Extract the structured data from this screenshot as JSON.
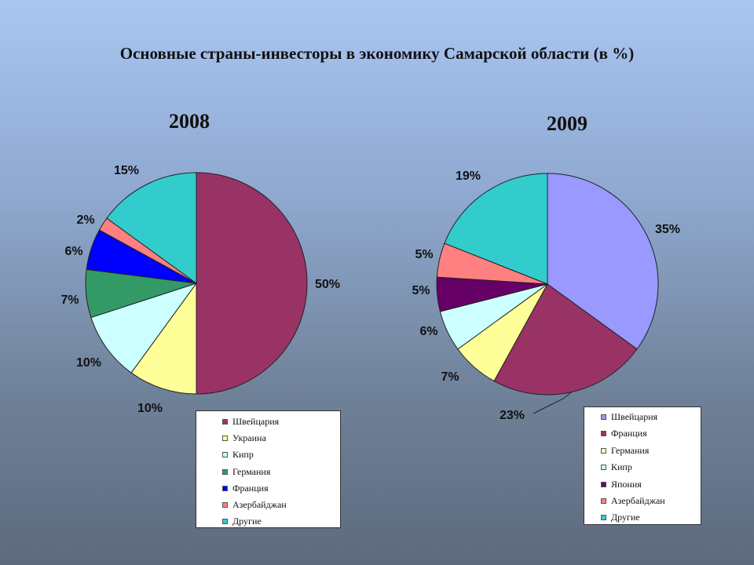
{
  "title": "Основные страны-инвесторы в экономику Самарской области (в %)",
  "chart_data": [
    {
      "type": "pie",
      "title": "2008",
      "legend_position": "below",
      "slices": [
        {
          "name": "Швейцария",
          "value": 50,
          "label": "50%",
          "color": "#993366"
        },
        {
          "name": "Украина",
          "value": 10,
          "label": "10%",
          "color": "#ffff99"
        },
        {
          "name": "Кипр",
          "value": 10,
          "label": "10%",
          "color": "#ccffff"
        },
        {
          "name": "Германия",
          "value": 7,
          "label": "7%",
          "color": "#339966"
        },
        {
          "name": "Франция",
          "value": 6,
          "label": "6%",
          "color": "#0000ff"
        },
        {
          "name": "Азербайджан",
          "value": 2,
          "label": "2%",
          "color": "#ff8080"
        },
        {
          "name": "Другие",
          "value": 15,
          "label": "15%",
          "color": "#33cccc"
        }
      ]
    },
    {
      "type": "pie",
      "title": "2009",
      "legend_position": "below-right",
      "slices": [
        {
          "name": "Швейцария",
          "value": 35,
          "label": "35%",
          "color": "#9999ff"
        },
        {
          "name": "Франция",
          "value": 23,
          "label": "23%",
          "color": "#993366"
        },
        {
          "name": "Германия",
          "value": 7,
          "label": "7%",
          "color": "#ffff99"
        },
        {
          "name": "Кипр",
          "value": 6,
          "label": "6%",
          "color": "#ccffff"
        },
        {
          "name": "Япония",
          "value": 5,
          "label": "5%",
          "color": "#660066"
        },
        {
          "name": "Азербайджан",
          "value": 5,
          "label": "5%",
          "color": "#ff8080"
        },
        {
          "name": "Другие",
          "value": 19,
          "label": "19%",
          "color": "#33cccc"
        }
      ]
    }
  ]
}
